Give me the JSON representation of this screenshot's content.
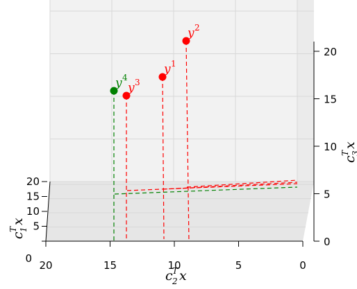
{
  "chart_data": {
    "type": "scatter",
    "projection": "3d",
    "axes": {
      "x": {
        "label_base": "c",
        "label_sub": "2",
        "label_sup": "T",
        "label_var": "x",
        "ticks": [
          20,
          15,
          10,
          5,
          0
        ],
        "range": [
          20,
          0
        ]
      },
      "y": {
        "label_base": "c",
        "label_sub": "1",
        "label_sup": "T",
        "label_var": "x",
        "ticks": [
          0,
          5,
          10,
          15,
          20
        ],
        "range": [
          0,
          20
        ]
      },
      "z": {
        "label_base": "c",
        "label_sub": "3",
        "label_sup": "T",
        "label_var": "x",
        "ticks": [
          0,
          5,
          10,
          15,
          20
        ],
        "range": [
          0,
          21
        ]
      }
    },
    "grid": true,
    "points": [
      {
        "name": "y",
        "sup": "1",
        "x": 11,
        "y": 8,
        "z": 17,
        "color": "#ff0000"
      },
      {
        "name": "y",
        "sup": "2",
        "x": 9,
        "y": 8,
        "z": 20,
        "color": "#ff0000"
      },
      {
        "name": "y",
        "sup": "3",
        "x": 14,
        "y": 9,
        "z": 15,
        "color": "#ff0000"
      },
      {
        "name": "y",
        "sup": "4",
        "x": 15,
        "y": 6,
        "z": 15.5,
        "color": "#008000"
      }
    ],
    "projection_lines": "dashed"
  }
}
